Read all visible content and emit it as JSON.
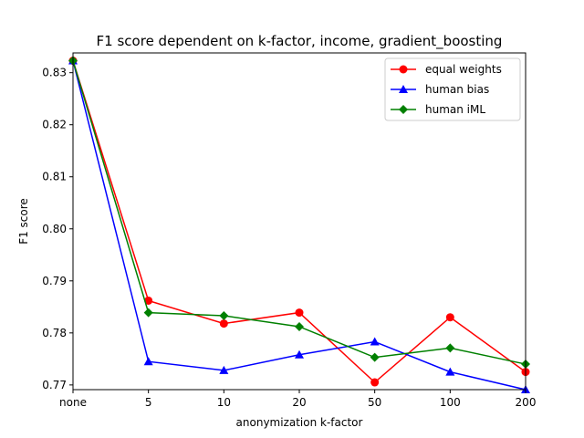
{
  "chart_data": {
    "type": "line",
    "title": "F1 score dependent on k-factor, income, gradient_boosting",
    "xlabel": "anonymization k-factor",
    "ylabel": "F1 score",
    "categories": [
      "none",
      "5",
      "10",
      "20",
      "50",
      "100",
      "200"
    ],
    "yticks": [
      "0.77",
      "0.78",
      "0.79",
      "0.80",
      "0.81",
      "0.82",
      "0.83"
    ],
    "ylim": [
      0.7691,
      0.8338
    ],
    "legend_position": "top-right",
    "grid": false,
    "series": [
      {
        "name": "equal weights",
        "color": "#ff0000",
        "marker": "circle",
        "values": [
          0.8323,
          0.7862,
          0.7818,
          0.7839,
          0.7705,
          0.783,
          0.7725
        ]
      },
      {
        "name": "human bias",
        "color": "#0000ff",
        "marker": "triangle",
        "values": [
          0.8323,
          0.7745,
          0.7728,
          0.7758,
          0.7783,
          0.7725,
          0.7691
        ]
      },
      {
        "name": "human iML",
        "color": "#008000",
        "marker": "diamond",
        "values": [
          0.8323,
          0.7839,
          0.7833,
          0.7812,
          0.7753,
          0.7771,
          0.774
        ]
      }
    ]
  }
}
